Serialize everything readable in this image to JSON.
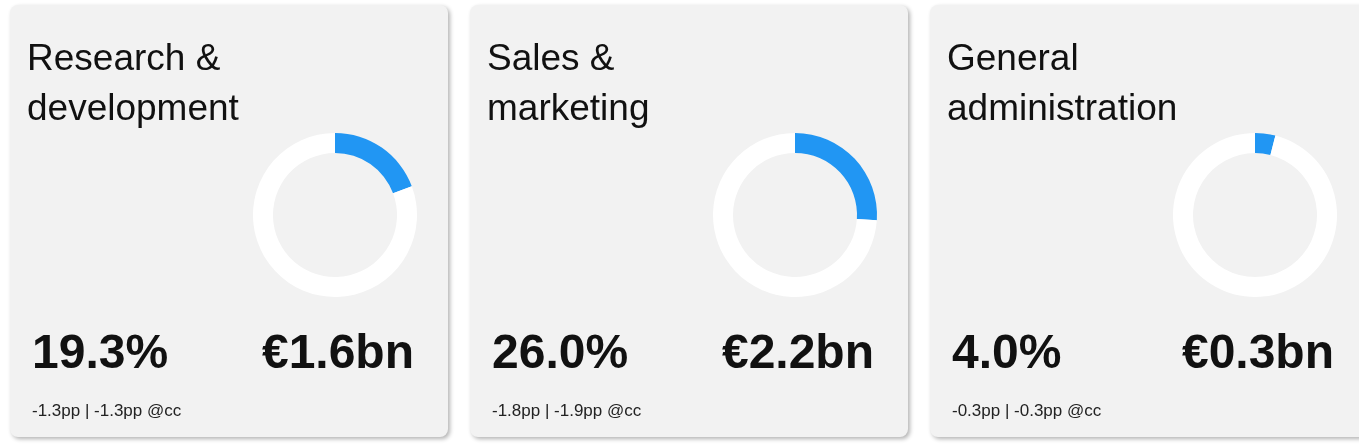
{
  "chart_data": [
    {
      "type": "donut",
      "title": "Research & development",
      "categories": [
        null,
        null
      ],
      "values": [
        19.3,
        80.7
      ],
      "colors": [
        "#2196f3",
        "#ffffff"
      ],
      "annotations": [
        "19.3%",
        "€1.6bn",
        "-1.3pp | -1.3pp @cc"
      ]
    },
    {
      "type": "donut",
      "title": "Sales & marketing",
      "categories": [
        null,
        null
      ],
      "values": [
        26.0,
        74.0
      ],
      "colors": [
        "#2196f3",
        "#ffffff"
      ],
      "annotations": [
        "26.0%",
        "€2.2bn",
        "-1.8pp | -1.9pp @cc"
      ]
    },
    {
      "type": "donut",
      "title": "General administration",
      "categories": [
        null,
        null
      ],
      "values": [
        4.0,
        96.0
      ],
      "colors": [
        "#2196f3",
        "#ffffff"
      ],
      "annotations": [
        "4.0%",
        "€0.3bn",
        "-0.3pp | -0.3pp @cc"
      ]
    }
  ]
}
